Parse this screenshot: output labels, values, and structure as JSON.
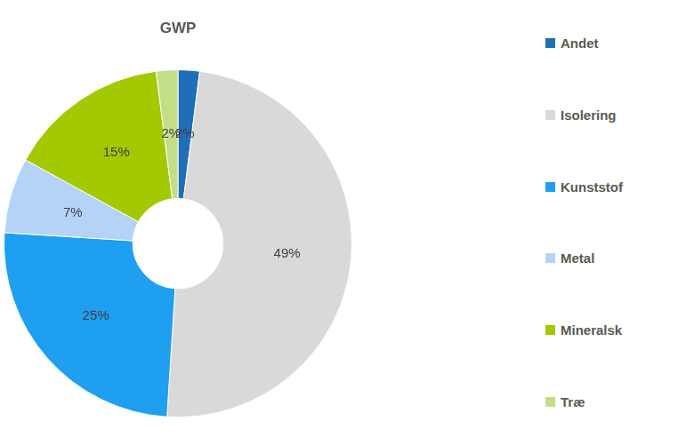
{
  "chart_data": {
    "type": "doughnut",
    "title": "GWP",
    "categories": [
      "Andet",
      "Isolering",
      "Kunststof",
      "Metal",
      "Mineralsk",
      "Træ"
    ],
    "values": [
      2,
      49,
      25,
      7,
      15,
      2
    ],
    "value_labels": [
      "2%",
      "49%",
      "25%",
      "7%",
      "15%",
      "2%"
    ],
    "colors": [
      "#1f6fb8",
      "#d9d9d9",
      "#1e9ff0",
      "#b4d3f6",
      "#a3c900",
      "#c4de88"
    ],
    "legend": "right",
    "data_labels": true
  }
}
